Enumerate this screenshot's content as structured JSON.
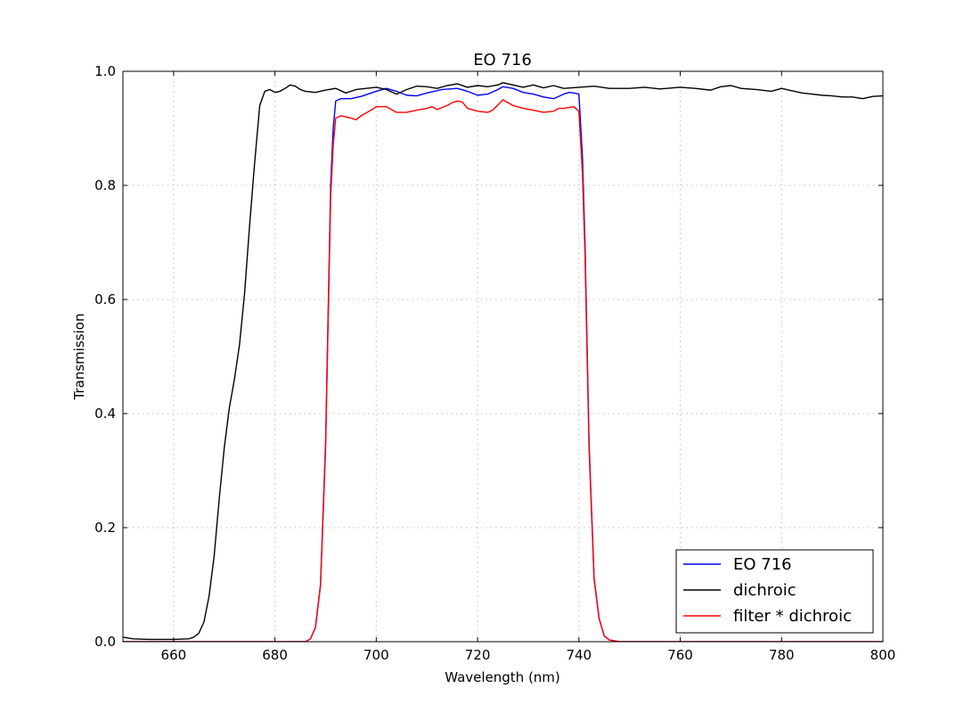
{
  "chart_data": {
    "type": "line",
    "title": "EO 716",
    "xlabel": "Wavelength (nm)",
    "ylabel": "Transmission",
    "xlim": [
      650,
      800
    ],
    "ylim": [
      0.0,
      1.0
    ],
    "xticks": [
      660,
      680,
      700,
      720,
      740,
      760,
      780,
      800
    ],
    "yticks": [
      0.0,
      0.2,
      0.4,
      0.6,
      0.8,
      1.0
    ],
    "grid": true,
    "legend_position": "lower-right",
    "series": [
      {
        "name": "EO 716",
        "color": "#0000ff",
        "points": [
          [
            650,
            0.0
          ],
          [
            686,
            0.0
          ],
          [
            687,
            0.005
          ],
          [
            688,
            0.025
          ],
          [
            689,
            0.1
          ],
          [
            690,
            0.35
          ],
          [
            691,
            0.8
          ],
          [
            691.5,
            0.9
          ],
          [
            692,
            0.948
          ],
          [
            693,
            0.952
          ],
          [
            695,
            0.952
          ],
          [
            697,
            0.956
          ],
          [
            700,
            0.965
          ],
          [
            702,
            0.97
          ],
          [
            704,
            0.965
          ],
          [
            706,
            0.958
          ],
          [
            708,
            0.957
          ],
          [
            710,
            0.962
          ],
          [
            713,
            0.968
          ],
          [
            716,
            0.97
          ],
          [
            718,
            0.965
          ],
          [
            720,
            0.958
          ],
          [
            722,
            0.96
          ],
          [
            724,
            0.968
          ],
          [
            725,
            0.973
          ],
          [
            727,
            0.97
          ],
          [
            729,
            0.963
          ],
          [
            731,
            0.96
          ],
          [
            733,
            0.955
          ],
          [
            735,
            0.952
          ],
          [
            737,
            0.96
          ],
          [
            738,
            0.963
          ],
          [
            739,
            0.962
          ],
          [
            740,
            0.96
          ],
          [
            740.7,
            0.85
          ],
          [
            741.2,
            0.7
          ],
          [
            742,
            0.35
          ],
          [
            743,
            0.11
          ],
          [
            744,
            0.04
          ],
          [
            745,
            0.01
          ],
          [
            746,
            0.003
          ],
          [
            748,
            0.0
          ],
          [
            800,
            0.0
          ]
        ]
      },
      {
        "name": "dichroic",
        "color": "#000000",
        "points": [
          [
            650,
            0.008
          ],
          [
            652,
            0.005
          ],
          [
            655,
            0.004
          ],
          [
            660,
            0.004
          ],
          [
            663,
            0.005
          ],
          [
            664,
            0.008
          ],
          [
            665,
            0.015
          ],
          [
            666,
            0.035
          ],
          [
            667,
            0.08
          ],
          [
            668,
            0.15
          ],
          [
            669,
            0.25
          ],
          [
            670,
            0.34
          ],
          [
            671,
            0.41
          ],
          [
            672,
            0.46
          ],
          [
            673,
            0.52
          ],
          [
            674,
            0.61
          ],
          [
            675,
            0.73
          ],
          [
            676,
            0.84
          ],
          [
            677,
            0.94
          ],
          [
            678,
            0.965
          ],
          [
            679,
            0.968
          ],
          [
            680,
            0.963
          ],
          [
            681,
            0.965
          ],
          [
            682,
            0.97
          ],
          [
            683,
            0.976
          ],
          [
            684,
            0.974
          ],
          [
            685,
            0.968
          ],
          [
            686,
            0.965
          ],
          [
            688,
            0.963
          ],
          [
            690,
            0.967
          ],
          [
            692,
            0.97
          ],
          [
            694,
            0.962
          ],
          [
            696,
            0.968
          ],
          [
            698,
            0.97
          ],
          [
            700,
            0.972
          ],
          [
            702,
            0.968
          ],
          [
            704,
            0.96
          ],
          [
            706,
            0.968
          ],
          [
            708,
            0.974
          ],
          [
            710,
            0.973
          ],
          [
            712,
            0.97
          ],
          [
            714,
            0.975
          ],
          [
            716,
            0.978
          ],
          [
            718,
            0.972
          ],
          [
            720,
            0.975
          ],
          [
            722,
            0.973
          ],
          [
            724,
            0.976
          ],
          [
            725,
            0.98
          ],
          [
            727,
            0.976
          ],
          [
            729,
            0.972
          ],
          [
            731,
            0.976
          ],
          [
            733,
            0.971
          ],
          [
            735,
            0.975
          ],
          [
            737,
            0.97
          ],
          [
            740,
            0.972
          ],
          [
            743,
            0.974
          ],
          [
            746,
            0.97
          ],
          [
            750,
            0.97
          ],
          [
            753,
            0.972
          ],
          [
            756,
            0.969
          ],
          [
            760,
            0.972
          ],
          [
            763,
            0.97
          ],
          [
            766,
            0.967
          ],
          [
            768,
            0.973
          ],
          [
            770,
            0.975
          ],
          [
            772,
            0.97
          ],
          [
            775,
            0.968
          ],
          [
            778,
            0.965
          ],
          [
            780,
            0.97
          ],
          [
            782,
            0.966
          ],
          [
            784,
            0.962
          ],
          [
            786,
            0.96
          ],
          [
            788,
            0.958
          ],
          [
            790,
            0.957
          ],
          [
            792,
            0.955
          ],
          [
            794,
            0.955
          ],
          [
            796,
            0.952
          ],
          [
            798,
            0.956
          ],
          [
            800,
            0.957
          ]
        ]
      },
      {
        "name": "filter * dichroic",
        "color": "#ff0000",
        "points": [
          [
            650,
            0.0
          ],
          [
            686,
            0.0
          ],
          [
            687,
            0.005
          ],
          [
            688,
            0.025
          ],
          [
            689,
            0.1
          ],
          [
            690,
            0.34
          ],
          [
            691,
            0.78
          ],
          [
            691.5,
            0.87
          ],
          [
            692,
            0.918
          ],
          [
            693,
            0.922
          ],
          [
            695,
            0.918
          ],
          [
            696,
            0.915
          ],
          [
            697,
            0.922
          ],
          [
            699,
            0.932
          ],
          [
            700,
            0.938
          ],
          [
            702,
            0.938
          ],
          [
            704,
            0.928
          ],
          [
            706,
            0.928
          ],
          [
            708,
            0.932
          ],
          [
            710,
            0.935
          ],
          [
            711,
            0.938
          ],
          [
            712,
            0.933
          ],
          [
            714,
            0.94
          ],
          [
            715,
            0.945
          ],
          [
            716,
            0.948
          ],
          [
            717,
            0.946
          ],
          [
            718,
            0.935
          ],
          [
            720,
            0.93
          ],
          [
            722,
            0.928
          ],
          [
            723,
            0.932
          ],
          [
            725,
            0.95
          ],
          [
            727,
            0.94
          ],
          [
            729,
            0.935
          ],
          [
            731,
            0.932
          ],
          [
            733,
            0.928
          ],
          [
            735,
            0.93
          ],
          [
            736,
            0.935
          ],
          [
            737,
            0.935
          ],
          [
            739,
            0.938
          ],
          [
            740,
            0.93
          ],
          [
            740.7,
            0.82
          ],
          [
            741.2,
            0.68
          ],
          [
            742,
            0.34
          ],
          [
            743,
            0.11
          ],
          [
            744,
            0.04
          ],
          [
            745,
            0.01
          ],
          [
            746,
            0.003
          ],
          [
            748,
            0.0
          ],
          [
            800,
            0.0
          ]
        ]
      }
    ]
  }
}
